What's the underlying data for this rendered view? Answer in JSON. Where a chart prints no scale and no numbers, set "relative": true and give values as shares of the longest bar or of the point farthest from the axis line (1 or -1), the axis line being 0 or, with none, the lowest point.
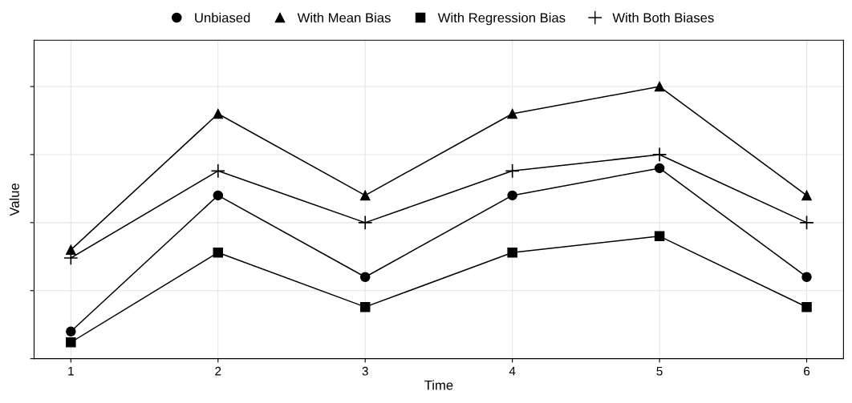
{
  "chart_data": {
    "type": "line",
    "xlabel": "Time",
    "ylabel": "Value",
    "relative": true,
    "categories": [
      "1",
      "2",
      "3",
      "4",
      "5",
      "6"
    ],
    "series": [
      {
        "name": "Unbiased",
        "color": "#000000",
        "marker": "circle",
        "values": [
          0.1,
          0.6,
          0.3,
          0.6,
          0.7,
          0.3
        ]
      },
      {
        "name": "With Mean Bias",
        "color": "#000000",
        "marker": "triangle",
        "values": [
          0.4,
          0.9,
          0.6,
          0.9,
          1.0,
          0.6
        ]
      },
      {
        "name": "With Regression Bias",
        "color": "#000000",
        "marker": "square",
        "values": [
          0.06,
          0.39,
          0.19,
          0.39,
          0.45,
          0.19
        ]
      },
      {
        "name": "With Both Biases",
        "color": "#000000",
        "marker": "cross",
        "values": [
          0.37,
          0.69,
          0.5,
          0.69,
          0.75,
          0.5
        ]
      }
    ],
    "grid": true,
    "legend": "top",
    "line_style": "solid"
  }
}
